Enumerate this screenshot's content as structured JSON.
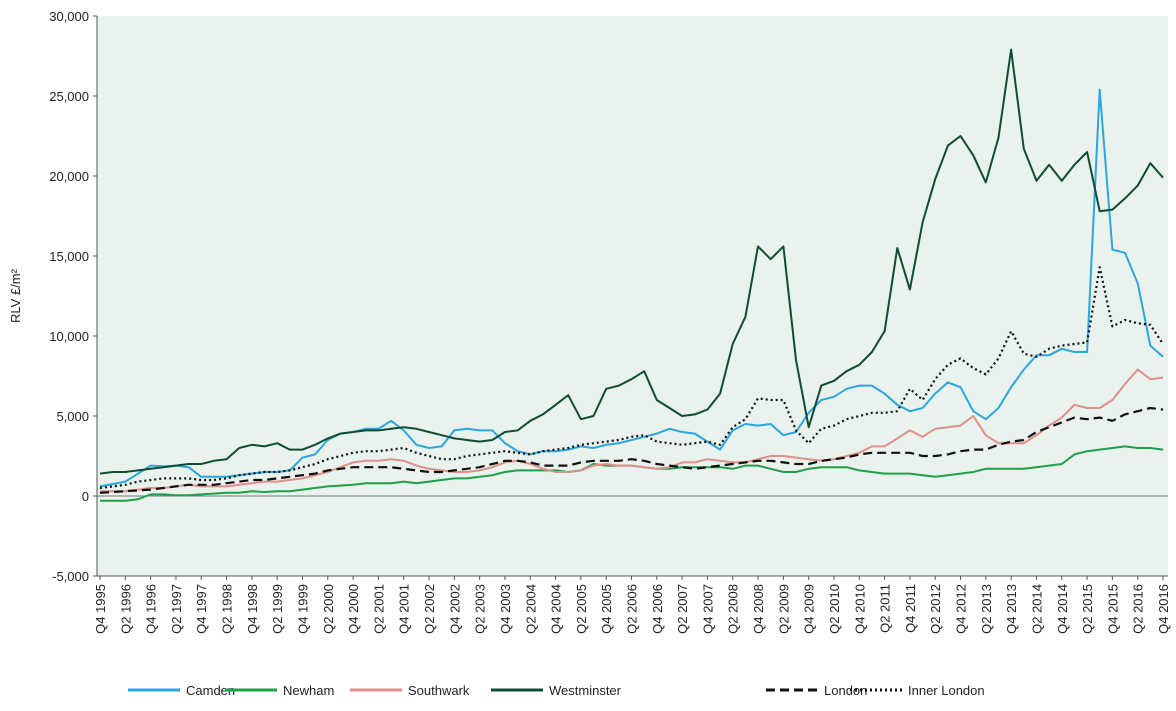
{
  "chart_data": {
    "type": "line",
    "y_label": "RLV £/m²",
    "categories": [
      "Q4 1995",
      null,
      "Q2 1996",
      null,
      "Q4 1996",
      null,
      "Q2 1997",
      null,
      "Q4 1997",
      null,
      "Q2 1998",
      null,
      "Q4 1998",
      null,
      "Q2 1999",
      null,
      "Q4 1999",
      null,
      "Q2 2000",
      null,
      "Q4 2000",
      null,
      "Q2 2001",
      null,
      "Q4 2001",
      null,
      "Q2 2002",
      null,
      "Q4 2002",
      null,
      "Q2 2003",
      null,
      "Q4 2003",
      null,
      "Q2 2004",
      null,
      "Q4 2004",
      null,
      "Q2 2005",
      null,
      "Q4 2005",
      null,
      "Q2 2006",
      null,
      "Q4 2006",
      null,
      "Q2 2007",
      null,
      "Q4 2007",
      null,
      "Q2 2008",
      null,
      "Q4 2008",
      null,
      "Q2 2009",
      null,
      "Q4 2009",
      null,
      "Q2 2010",
      null,
      "Q4 2010",
      null,
      "Q2 2011",
      null,
      "Q4 2011",
      null,
      "Q2 2012",
      null,
      "Q4 2012",
      null,
      "Q2 2013",
      null,
      "Q4 2013",
      null,
      "Q2 2014",
      null,
      "Q4 2014",
      null,
      "Q2 2015",
      null,
      "Q4 2015",
      null,
      "Q2 2016",
      null,
      "Q4 2016"
    ],
    "series": [
      {
        "name": "Camden",
        "color": "#2aa7df",
        "line_style": "solid",
        "values": [
          600,
          750,
          900,
          1400,
          1900,
          1850,
          1900,
          1800,
          1200,
          1200,
          1200,
          1300,
          1400,
          1500,
          1500,
          1600,
          2400,
          2600,
          3500,
          3900,
          4000,
          4200,
          4200,
          4700,
          4100,
          3200,
          3000,
          3100,
          4100,
          4200,
          4100,
          4100,
          3300,
          2800,
          2600,
          2800,
          2800,
          2900,
          3100,
          3000,
          3200,
          3300,
          3500,
          3700,
          3900,
          4200,
          4000,
          3900,
          3400,
          2900,
          4100,
          4500,
          4400,
          4500,
          3800,
          4000,
          5200,
          6000,
          6200,
          6700,
          6900,
          6900,
          6400,
          5700,
          5300,
          5500,
          6400,
          7100,
          6800,
          5300,
          4800,
          5500,
          6800,
          7900,
          8800,
          8800,
          9200,
          9000,
          9000,
          25400,
          15400,
          15200,
          13300,
          9400,
          8700
        ]
      },
      {
        "name": "Newham",
        "color": "#1ea04b",
        "line_style": "solid",
        "values": [
          -300,
          -300,
          -300,
          -200,
          100,
          100,
          50,
          50,
          100,
          150,
          200,
          200,
          300,
          250,
          300,
          300,
          400,
          500,
          600,
          650,
          700,
          800,
          800,
          800,
          900,
          800,
          900,
          1000,
          1100,
          1100,
          1200,
          1300,
          1500,
          1600,
          1600,
          1600,
          1600,
          1500,
          1600,
          2000,
          1900,
          1900,
          1900,
          1800,
          1700,
          1700,
          1800,
          1800,
          1800,
          1800,
          1700,
          1900,
          1900,
          1700,
          1500,
          1500,
          1700,
          1800,
          1800,
          1800,
          1600,
          1500,
          1400,
          1400,
          1400,
          1300,
          1200,
          1300,
          1400,
          1500,
          1700,
          1700,
          1700,
          1700,
          1800,
          1900,
          2000,
          2600,
          2800,
          2900,
          3000,
          3100,
          3000,
          3000,
          2900
        ]
      },
      {
        "name": "Southwark",
        "color": "#e0908b",
        "line_style": "solid",
        "values": [
          300,
          300,
          300,
          400,
          500,
          500,
          600,
          700,
          600,
          600,
          600,
          700,
          800,
          900,
          900,
          1000,
          1100,
          1300,
          1500,
          1800,
          2100,
          2200,
          2200,
          2300,
          2200,
          1900,
          1700,
          1600,
          1500,
          1500,
          1600,
          1800,
          2100,
          2200,
          2000,
          1700,
          1500,
          1500,
          1600,
          1900,
          2000,
          1900,
          1900,
          1800,
          1700,
          1800,
          2100,
          2100,
          2300,
          2200,
          2100,
          2100,
          2300,
          2500,
          2500,
          2400,
          2300,
          2200,
          2300,
          2500,
          2700,
          3100,
          3100,
          3600,
          4100,
          3700,
          4200,
          4300,
          4400,
          5000,
          3800,
          3300,
          3300,
          3300,
          3800,
          4400,
          4900,
          5700,
          5500,
          5500,
          6000,
          7000,
          7900,
          7300,
          7400
        ]
      },
      {
        "name": "Westminster",
        "color": "#0e4d34",
        "line_style": "solid",
        "values": [
          1400,
          1500,
          1500,
          1600,
          1700,
          1800,
          1900,
          2000,
          2000,
          2200,
          2300,
          3000,
          3200,
          3100,
          3300,
          2900,
          2900,
          3200,
          3600,
          3900,
          4000,
          4100,
          4100,
          4200,
          4300,
          4200,
          4000,
          3800,
          3600,
          3500,
          3400,
          3500,
          4000,
          4100,
          4700,
          5100,
          5700,
          6300,
          4800,
          5000,
          6700,
          6900,
          7300,
          7800,
          6000,
          5500,
          5000,
          5100,
          5400,
          6400,
          9500,
          11200,
          15600,
          14800,
          15600,
          8500,
          4300,
          6900,
          7200,
          7800,
          8200,
          9000,
          10300,
          15500,
          12900,
          17100,
          19800,
          21900,
          22500,
          21300,
          19600,
          22400,
          27900,
          21700,
          19700,
          20700,
          19700,
          20700,
          21500,
          17800,
          17900,
          18600,
          19400,
          20800,
          19900
        ]
      },
      {
        "name": "London",
        "color": "#111111",
        "line_style": "dashed",
        "values": [
          200,
          250,
          300,
          350,
          400,
          500,
          600,
          700,
          700,
          700,
          800,
          900,
          1000,
          1000,
          1100,
          1200,
          1300,
          1400,
          1600,
          1700,
          1800,
          1800,
          1800,
          1800,
          1700,
          1600,
          1500,
          1500,
          1600,
          1700,
          1800,
          2000,
          2200,
          2200,
          2100,
          1900,
          1900,
          1900,
          2100,
          2200,
          2200,
          2200,
          2300,
          2200,
          2000,
          1900,
          1800,
          1700,
          1800,
          1900,
          2000,
          2100,
          2200,
          2200,
          2100,
          2000,
          2000,
          2200,
          2300,
          2400,
          2600,
          2700,
          2700,
          2700,
          2700,
          2500,
          2500,
          2600,
          2800,
          2900,
          2900,
          3200,
          3400,
          3500,
          4000,
          4300,
          4600,
          4900,
          4800,
          4900,
          4700,
          5100,
          5300,
          5500,
          5400
        ]
      },
      {
        "name": "Inner London",
        "color": "#111111",
        "line_style": "dotted",
        "values": [
          500,
          600,
          700,
          900,
          1000,
          1100,
          1100,
          1100,
          1000,
          1000,
          1100,
          1300,
          1400,
          1500,
          1500,
          1600,
          1800,
          2000,
          2300,
          2500,
          2700,
          2800,
          2800,
          2900,
          3000,
          2700,
          2500,
          2300,
          2300,
          2500,
          2600,
          2700,
          2800,
          2700,
          2600,
          2800,
          2900,
          3000,
          3200,
          3300,
          3400,
          3500,
          3700,
          3800,
          3400,
          3300,
          3200,
          3300,
          3400,
          3200,
          4300,
          4800,
          6100,
          6000,
          6000,
          4100,
          3300,
          4200,
          4400,
          4800,
          5000,
          5200,
          5200,
          5300,
          6700,
          6000,
          7300,
          8200,
          8600,
          8000,
          7600,
          8600,
          10300,
          8900,
          8700,
          9200,
          9400,
          9500,
          9600,
          14300,
          10600,
          11000,
          10800,
          10700,
          9500
        ]
      }
    ],
    "ylim": [
      -5000,
      30000
    ],
    "yticks": [
      {
        "value": -5000,
        "label": "-5,000"
      },
      0,
      {
        "value": 5000,
        "label": "5,000"
      },
      {
        "value": 10000,
        "label": "10,000"
      },
      {
        "value": 15000,
        "label": "15,000"
      },
      {
        "value": 20000,
        "label": "20,000"
      },
      {
        "value": 25000,
        "label": "25,000"
      },
      {
        "value": 30000,
        "label": "30,000"
      }
    ],
    "grid": false
  }
}
